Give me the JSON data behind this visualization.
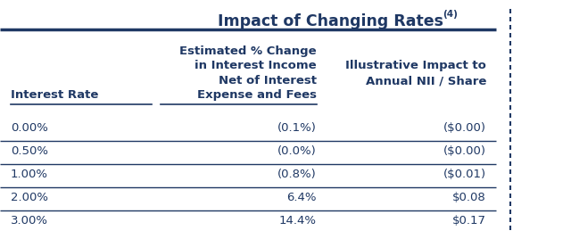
{
  "title": "Impact of Changing Rates",
  "title_superscript": "(4)",
  "title_color": "#1F3864",
  "background_color": "#FFFFFF",
  "line_color": "#1F3864",
  "col1_header": "Interest Rate",
  "col2_header": "Estimated % Change\nin Interest Income\nNet of Interest\nExpense and Fees",
  "col3_header": "Illustrative Impact to\nAnnual NII / Share",
  "rows": [
    [
      "0.00%",
      "(0.1%)",
      "($0.00)"
    ],
    [
      "0.50%",
      "(0.0%)",
      "($0.00)"
    ],
    [
      "1.00%",
      "(0.8%)",
      "($0.01)"
    ],
    [
      "2.00%",
      "6.4%",
      "$0.08"
    ],
    [
      "3.00%",
      "14.4%",
      "$0.17"
    ]
  ],
  "header_fontsize": 9.5,
  "cell_fontsize": 9.5,
  "title_fontsize": 12.5,
  "font_color": "#1F3864"
}
